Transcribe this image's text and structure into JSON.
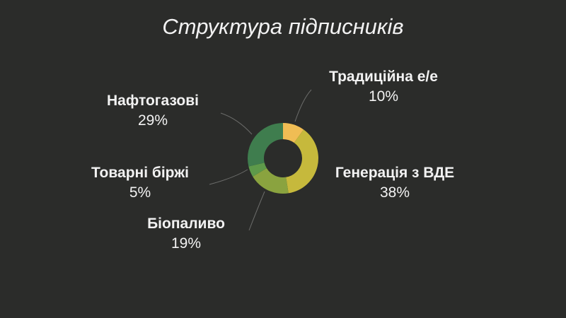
{
  "chart_data": {
    "type": "pie",
    "title": "Структура підписників",
    "slices": [
      {
        "label": "Традиційна е/е",
        "value": 10,
        "pct_label": "10%",
        "color": "#f0bd54"
      },
      {
        "label": "Генерація з ВДЕ",
        "value": 38,
        "pct_label": "38%",
        "color": "#c6b93c"
      },
      {
        "label": "Біопаливо",
        "value": 19,
        "pct_label": "19%",
        "color": "#8aa33f"
      },
      {
        "label": "Товарні біржі",
        "value": 5,
        "pct_label": "5%",
        "color": "#5e9a4a"
      },
      {
        "label": "Нафтогазові",
        "value": 29,
        "pct_label": "29%",
        "color": "#3f7d4e"
      }
    ],
    "donut": true,
    "legend": "none"
  },
  "colors": {
    "background": "#2b2c2a",
    "text": "#f2f2f2",
    "leader_line": "#6b6c6a"
  }
}
